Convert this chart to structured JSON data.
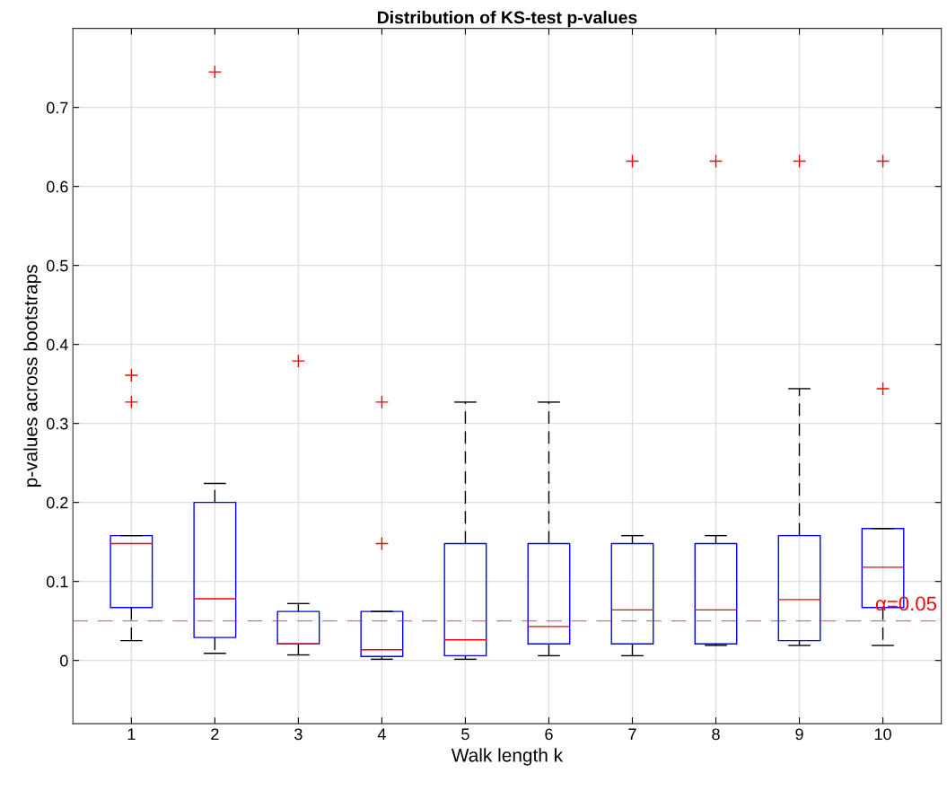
{
  "chart_data": {
    "type": "box",
    "title": "Distribution of KS-test p-values",
    "xlabel": "Walk length k",
    "ylabel": "p-values across bootstraps",
    "categories": [
      "1",
      "2",
      "3",
      "4",
      "5",
      "6",
      "7",
      "8",
      "9",
      "10"
    ],
    "series": [
      {
        "color": "#0000ff",
        "boxes": [
          {
            "low": 0.025,
            "q1": 0.067,
            "median": 0.148,
            "q3": 0.158,
            "high": 0.158,
            "outliers": [
              0.361,
              0.327
            ]
          },
          {
            "low": 0.009,
            "q1": 0.029,
            "median": 0.078,
            "q3": 0.2,
            "high": 0.224,
            "outliers": [
              0.745
            ]
          },
          {
            "low": 0.007,
            "q1": 0.021,
            "median": 0.021,
            "q3": 0.062,
            "high": 0.072,
            "outliers": [
              0.379
            ]
          },
          {
            "low": 0.0015,
            "q1": 0.005,
            "median": 0.0135,
            "q3": 0.062,
            "high": 0.062,
            "outliers": [
              0.327,
              0.148
            ]
          },
          {
            "low": 0.0015,
            "q1": 0.006,
            "median": 0.026,
            "q3": 0.148,
            "high": 0.327
          },
          {
            "low": 0.006,
            "q1": 0.021,
            "median": 0.043,
            "q3": 0.148,
            "high": 0.327
          },
          {
            "low": 0.006,
            "q1": 0.021,
            "median": 0.064,
            "q3": 0.148,
            "high": 0.158,
            "outliers": [
              0.632
            ]
          },
          {
            "low": 0.019,
            "q1": 0.021,
            "median": 0.064,
            "q3": 0.148,
            "high": 0.158,
            "outliers": [
              0.632
            ]
          },
          {
            "low": 0.019,
            "q1": 0.025,
            "median": 0.077,
            "q3": 0.158,
            "high": 0.344,
            "outliers": [
              0.632
            ]
          },
          {
            "low": 0.019,
            "q1": 0.067,
            "median": 0.118,
            "q3": 0.167,
            "high": 0.167,
            "outliers": [
              0.632,
              0.344
            ]
          }
        ]
      }
    ],
    "ylim": [
      -0.08,
      0.8
    ],
    "yticks": [
      0,
      0.1,
      0.2,
      0.3,
      0.4,
      0.5,
      0.6,
      0.7
    ],
    "ref_lines": [
      {
        "axis": "y",
        "value": 0.05,
        "label": "α=0.05",
        "color": "#ff0000",
        "line_style": "dashed"
      }
    ],
    "grid": true
  }
}
